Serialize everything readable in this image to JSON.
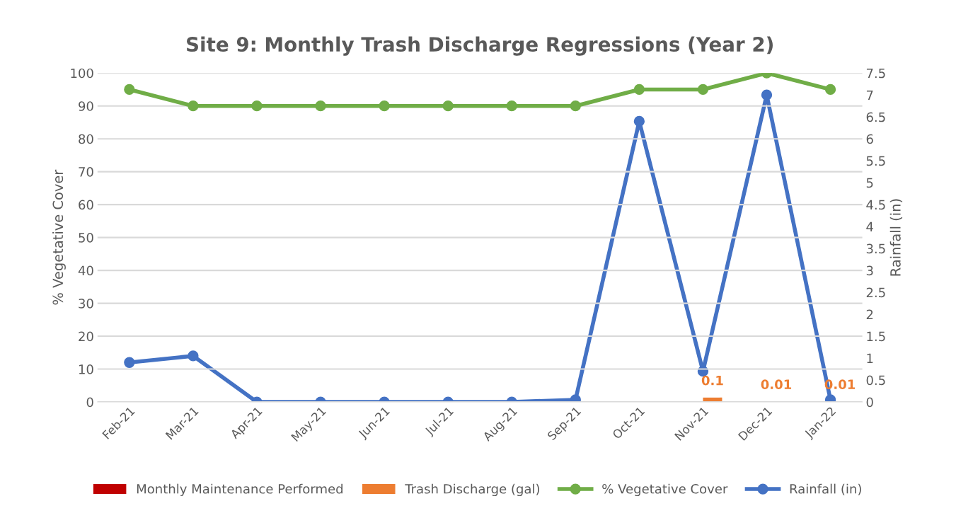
{
  "chart_data": {
    "type": "line",
    "title": "Site 9: Monthly Trash Discharge Regressions (Year 2)",
    "ylabel": "% Vegetative Cover",
    "y2label": "Rainfall (in)",
    "categories": [
      "Feb-21",
      "Mar-21",
      "Apr-21",
      "May-21",
      "Jun-21",
      "Jul-21",
      "Aug-21",
      "Sep-21",
      "Oct-21",
      "Nov-21",
      "Dec-21",
      "Jan-22"
    ],
    "series": [
      {
        "name": "Monthly Maintenance Performed",
        "type": "bar",
        "color": "#c00000",
        "axis": "y2",
        "values": [
          null,
          null,
          null,
          null,
          null,
          null,
          null,
          null,
          null,
          null,
          null,
          null
        ]
      },
      {
        "name": "Trash Discharge (gal)",
        "type": "bar",
        "color": "#ed7d31",
        "axis": "y2",
        "values": [
          null,
          null,
          null,
          null,
          null,
          null,
          null,
          null,
          null,
          0.1,
          0.01,
          0.01
        ],
        "value_labels": [
          null,
          null,
          null,
          null,
          null,
          null,
          null,
          null,
          null,
          "0.1",
          "0.01",
          "0.01"
        ]
      },
      {
        "name": "% Vegetative Cover",
        "color": "#70ad47",
        "values": [
          95,
          90,
          90,
          90,
          90,
          90,
          90,
          90,
          95,
          95,
          100,
          95
        ]
      },
      {
        "name": "Rainfall (in)",
        "color": "#4472c4",
        "axis": "y2",
        "values": [
          0.9,
          1.05,
          0,
          0,
          0,
          0,
          0,
          0.05,
          6.4,
          0.7,
          7,
          0.05
        ]
      }
    ],
    "ylim": [
      0,
      100
    ],
    "yticks": [
      0,
      10,
      20,
      30,
      40,
      50,
      60,
      70,
      80,
      90,
      100
    ],
    "y2lim": [
      0,
      7.5
    ],
    "y2ticks": [
      0,
      0.5,
      1,
      1.5,
      2,
      2.5,
      3,
      3.5,
      4,
      4.5,
      5,
      5.5,
      6,
      6.5,
      7,
      7.5
    ],
    "grid": "y",
    "legend": "bottom",
    "marker": "circle",
    "line_style": "solid"
  }
}
